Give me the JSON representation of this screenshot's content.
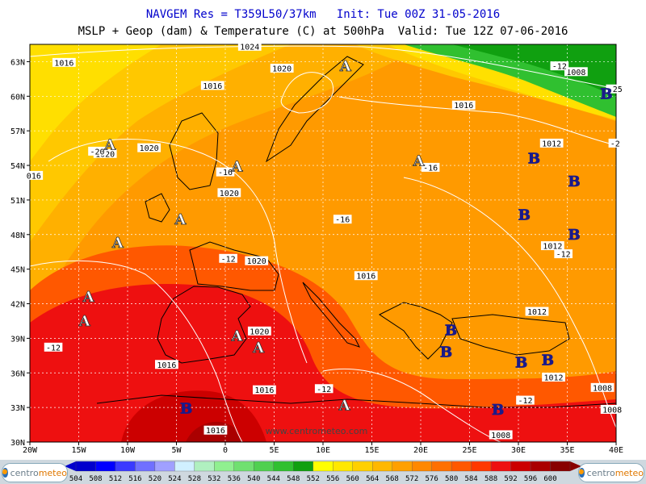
{
  "header": {
    "line1": "NAVGEM Res = T359L50/37km   Init: Tue 00Z 31-05-2016",
    "line2": "MSLP + Geop (dam) & Temperature (C) at 500hPa  Valid: Tue 12Z 07-06-2016"
  },
  "axes": {
    "lat_labels": [
      "63N",
      "60N",
      "57N",
      "54N",
      "51N",
      "48N",
      "45N",
      "42N",
      "39N",
      "36N",
      "33N",
      "30N"
    ],
    "lon_labels": [
      "20W",
      "15W",
      "10W",
      "5W",
      "0",
      "5E",
      "10E",
      "15E",
      "20E",
      "25E",
      "30E",
      "35E",
      "40E"
    ]
  },
  "map_labels": {
    "isobars": [
      {
        "text": "1016",
        "lon": -16.5,
        "lat": 62.9
      },
      {
        "text": "1024",
        "lon": 2.5,
        "lat": 64.3
      },
      {
        "text": "1020",
        "lon": 5.8,
        "lat": 62.4
      },
      {
        "text": "1016",
        "lon": -1.3,
        "lat": 60.9
      },
      {
        "text": "1016",
        "lon": 24.4,
        "lat": 59.2
      },
      {
        "text": "1008",
        "lon": 35.9,
        "lat": 62.1
      },
      {
        "text": "1012",
        "lon": 33.4,
        "lat": 55.9
      },
      {
        "text": "1020",
        "lon": -7.8,
        "lat": 55.5
      },
      {
        "text": "1020",
        "lon": -12.3,
        "lat": 55.0
      },
      {
        "text": "1020",
        "lon": 0.4,
        "lat": 51.6
      },
      {
        "text": "1020",
        "lon": 3.2,
        "lat": 45.7
      },
      {
        "text": "1016",
        "lon": 14.4,
        "lat": 44.4
      },
      {
        "text": "1012",
        "lon": 33.5,
        "lat": 47.0
      },
      {
        "text": "1012",
        "lon": 31.9,
        "lat": 41.3
      },
      {
        "text": "1020",
        "lon": 3.5,
        "lat": 39.6
      },
      {
        "text": "1016",
        "lon": -6.0,
        "lat": 36.7
      },
      {
        "text": "1016",
        "lon": 4.0,
        "lat": 34.5
      },
      {
        "text": "1012",
        "lon": 33.6,
        "lat": 35.6
      },
      {
        "text": "1008",
        "lon": 38.6,
        "lat": 34.7
      },
      {
        "text": "1008",
        "lon": 39.6,
        "lat": 32.8
      },
      {
        "text": "1008",
        "lon": 28.2,
        "lat": 30.6
      },
      {
        "text": "1016",
        "lon": -1.0,
        "lat": 31.0
      },
      {
        "text": "016",
        "lon": -19.6,
        "lat": 53.1
      }
    ],
    "temperatures": [
      {
        "text": "-20",
        "lon": -13.1,
        "lat": 55.2
      },
      {
        "text": "-16",
        "lon": 0.0,
        "lat": 53.4
      },
      {
        "text": "-16",
        "lon": 21.0,
        "lat": 53.8
      },
      {
        "text": "-16",
        "lon": 12.0,
        "lat": 49.3
      },
      {
        "text": "-12",
        "lon": 0.3,
        "lat": 45.9
      },
      {
        "text": "-12",
        "lon": -17.6,
        "lat": 38.2
      },
      {
        "text": "-12",
        "lon": 10.1,
        "lat": 34.6
      },
      {
        "text": "-12",
        "lon": 30.7,
        "lat": 33.6
      },
      {
        "text": "-12",
        "lon": 34.6,
        "lat": 46.3
      },
      {
        "text": "-12",
        "lon": 34.2,
        "lat": 62.6
      },
      {
        "text": "-2",
        "lon": 39.9,
        "lat": 55.9
      },
      {
        "text": "-25",
        "lon": 39.9,
        "lat": 60.6
      }
    ],
    "highs": [
      {
        "text": "A",
        "lon": 12.3,
        "lat": 62.6
      },
      {
        "text": "A",
        "lon": -11.8,
        "lat": 55.8
      },
      {
        "text": "A",
        "lon": 1.2,
        "lat": 53.9
      },
      {
        "text": "A",
        "lon": 19.8,
        "lat": 54.4
      },
      {
        "text": "A",
        "lon": -4.6,
        "lat": 49.3
      },
      {
        "text": "A",
        "lon": -11.0,
        "lat": 47.3
      },
      {
        "text": "A",
        "lon": -14.0,
        "lat": 42.6
      },
      {
        "text": "A",
        "lon": -14.4,
        "lat": 40.5
      },
      {
        "text": "A",
        "lon": 1.2,
        "lat": 39.2
      },
      {
        "text": "A",
        "lon": 3.4,
        "lat": 38.2
      },
      {
        "text": "A",
        "lon": 12.2,
        "lat": 33.2
      }
    ],
    "lows": [
      {
        "text": "B",
        "lon": 39.0,
        "lat": 60.2
      },
      {
        "text": "B",
        "lon": 31.6,
        "lat": 54.6
      },
      {
        "text": "B",
        "lon": 35.7,
        "lat": 52.6
      },
      {
        "text": "B",
        "lon": 30.6,
        "lat": 49.7
      },
      {
        "text": "B",
        "lon": 35.7,
        "lat": 48.0
      },
      {
        "text": "B",
        "lon": 23.1,
        "lat": 39.7
      },
      {
        "text": "B",
        "lon": 22.6,
        "lat": 37.8
      },
      {
        "text": "B",
        "lon": 30.3,
        "lat": 36.9
      },
      {
        "text": "B",
        "lon": 33.0,
        "lat": 37.1
      },
      {
        "text": "B",
        "lon": 27.9,
        "lat": 32.8
      },
      {
        "text": "B",
        "lon": -4.0,
        "lat": 32.9
      }
    ],
    "watermark": "www.centrometeo.com"
  },
  "colorbar": {
    "levels": [
      "504",
      "508",
      "512",
      "516",
      "520",
      "524",
      "528",
      "532",
      "536",
      "540",
      "544",
      "548",
      "552",
      "556",
      "560",
      "564",
      "568",
      "572",
      "576",
      "580",
      "584",
      "588",
      "592",
      "596",
      "600"
    ],
    "colors": [
      "#0000cd",
      "#0000ff",
      "#3a3aff",
      "#7070ff",
      "#a0a0ff",
      "#d0f0ff",
      "#b0f0c0",
      "#90f090",
      "#70e070",
      "#50d050",
      "#30c030",
      "#10a010",
      "#ffff00",
      "#ffe800",
      "#ffd000",
      "#ffb800",
      "#ffa000",
      "#ff8800",
      "#ff7000",
      "#ff5800",
      "#ff3800",
      "#ee1010",
      "#cc0000",
      "#aa0000",
      "#880000"
    ]
  },
  "logo": {
    "left_text_1": "centro",
    "left_text_2": "meteo",
    "right_text_1": "centro",
    "right_text_2": "meteo"
  }
}
